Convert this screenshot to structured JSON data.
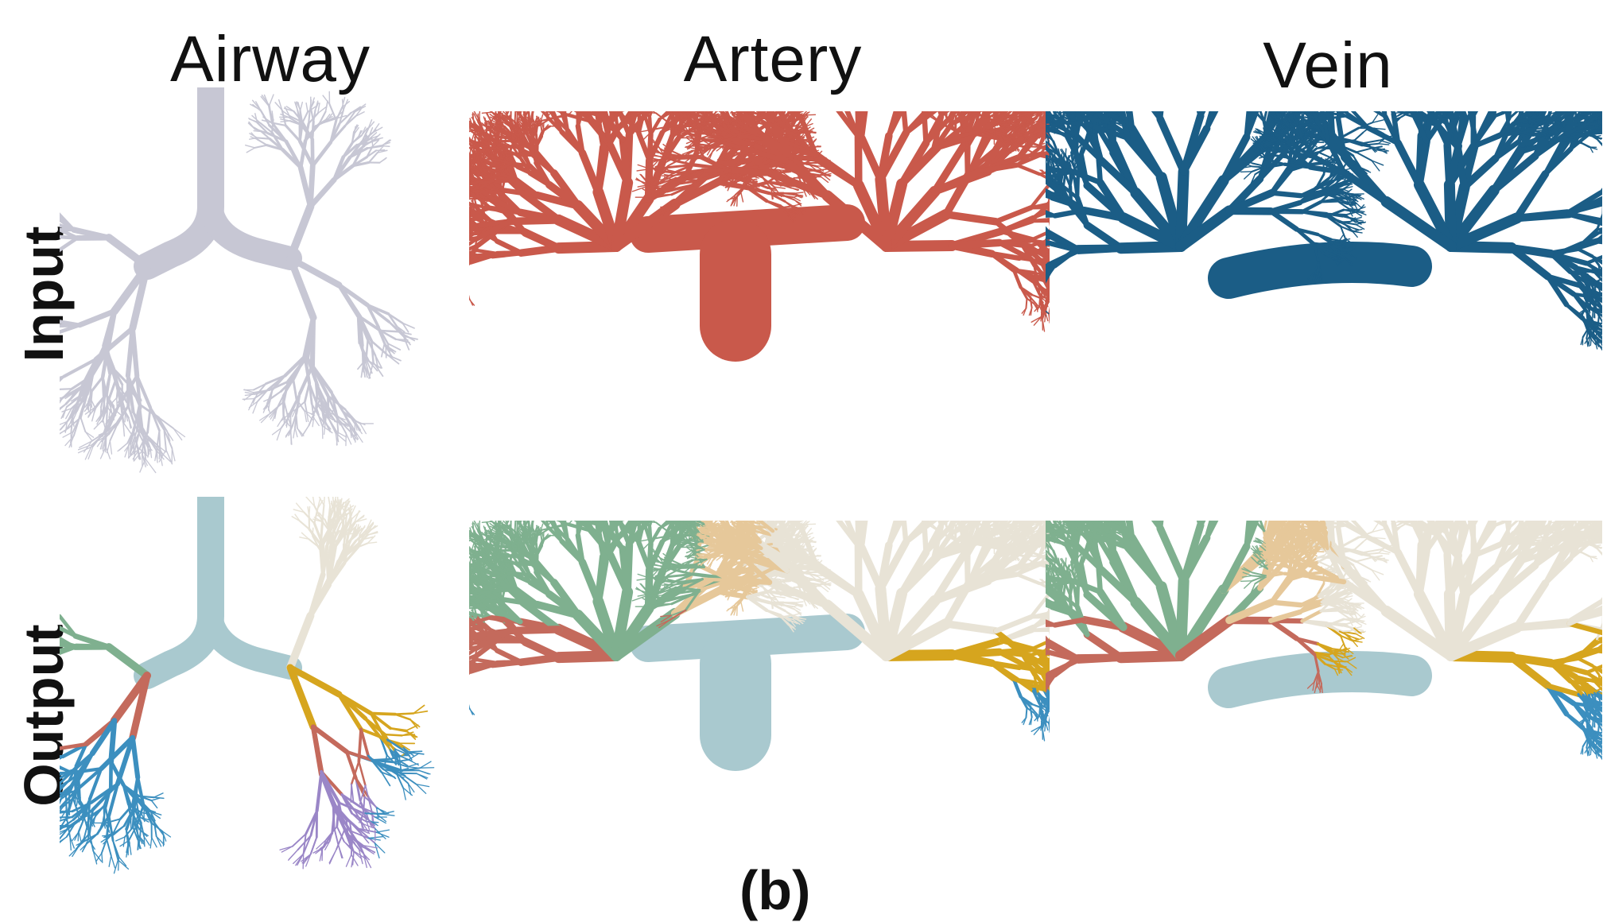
{
  "columns": {
    "airway": "Airway",
    "artery": "Artery",
    "vein": "Vein"
  },
  "rows": {
    "input": "Input",
    "output": "Output"
  },
  "caption": "(b)",
  "colors": {
    "airway_input": "#c7c7d4",
    "airway_output": "#b7d3d8",
    "artery_input": "#c9594b",
    "vein_input": "#1b5d86",
    "trunk_output": "#a9c9cf",
    "segments": [
      "#e6c89a",
      "#7fb08f",
      "#c46a5c",
      "#3c8fbf",
      "#e0c73a",
      "#3a2a14",
      "#e8e3d6",
      "#9a86c7",
      "#d6a51e",
      "#7fd6a6"
    ]
  },
  "icons": {
    "tree": "bronchial-vessel-tree-rendering"
  }
}
